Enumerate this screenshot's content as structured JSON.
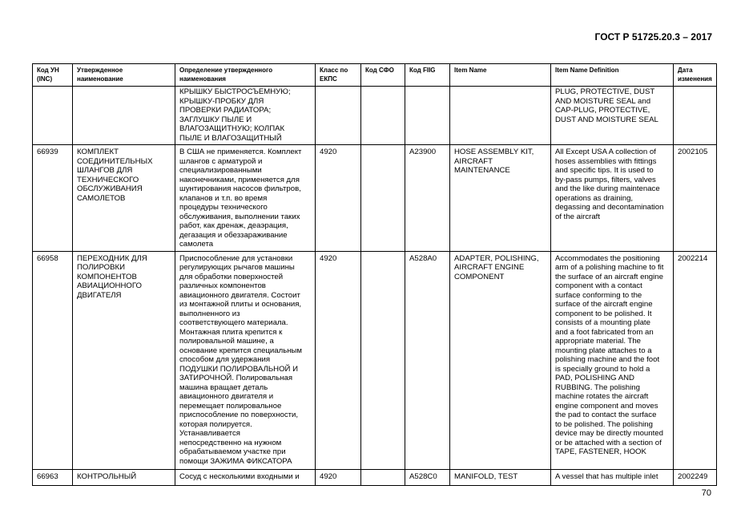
{
  "header": {
    "doc_title": "ГОСТ Р 51725.20.3 – 2017"
  },
  "table": {
    "columns": [
      "Код УН\n(INC)",
      "Утвержденное\nнаименование",
      "Определение утвержденного\nнаименования",
      "Класс по\nЕКПС",
      "Код СФО",
      "Код FIIG",
      "Item Name",
      "Item Name Definition",
      "Дата\nизменения"
    ],
    "rows": [
      [
        "",
        "",
        "КРЫШКУ БЫСТРОСЪЕМНУЮ;\nКРЫШКУ-ПРОБКУ ДЛЯ\nПРОВЕРКИ РАДИАТОРА;\nЗАГЛУШКУ ПЫЛЕ И\nВЛАГОЗАЩИТНУЮ; КОЛПАК\nПЫЛЕ И ВЛАГОЗАЩИТНЫЙ",
        "",
        "",
        "",
        "",
        "PLUG, PROTECTIVE, DUST\nAND MOISTURE SEAL and\nCAP-PLUG, PROTECTIVE,\nDUST AND MOISTURE SEAL",
        ""
      ],
      [
        "66939",
        "КОМПЛЕКТ\nСОЕДИНИТЕЛЬНЫХ\nШЛАНГОВ ДЛЯ\nТЕХНИЧЕСКОГО\nОБСЛУЖИВАНИЯ\nСАМОЛЕТОВ",
        "В США не применяется. Комплект\nшлангов с арматурой и\nспециализированными\nнаконечниками, применяется для\nшунтирования насосов фильтров,\nклапанов и т.п. во время\nпроцедуры технического\nобслуживания, выполнении таких\nработ, как дренаж, деаэрация,\nдегазация и обеззараживание\nсамолета",
        "4920",
        "",
        "A23900",
        "HOSE ASSEMBLY KIT,\nAIRCRAFT\nMAINTENANCE",
        "All Except USA A collection of\nhoses assemblies with fittings\nand specific tips.  It is used to\nby-pass pumps, filters, valves\nand the like during maintenace\noperations as draining,\ndegassing and decontamination\nof the aircraft",
        "2002105"
      ],
      [
        "66958",
        "ПЕРЕХОДНИК ДЛЯ\nПОЛИРОВКИ\nКОМПОНЕНТОВ\nАВИАЦИОННОГО\nДВИГАТЕЛЯ",
        "Приспособление для установки\nрегулирующих рычагов машины\nдля обработки поверхностей\nразличных компонентов\nавиационного двигателя. Состоит\nиз монтажной плиты и основания,\nвыполненного из\nсоответствующего материала.\nМонтажная плита крепится к\nполировальной машине, а\nоснование крепится специальным\nспособом для удержания\nПОДУШКИ ПОЛИРОВАЛЬНОЙ И\nЗАТИРОЧНОЙ. Полировальная\nмашина вращает деталь\nавиационного двигателя и\nперемещает полировальное\nприспособление по поверхности,\nкоторая полируется.\nУстанавливается\nнепосредственно на нужном\nобрабатываемом участке при\nпомощи ЗАЖИМА ФИКСАТОРА",
        "4920",
        "",
        "A528A0",
        "ADAPTER, POLISHING,\nAIRCRAFT ENGINE\nCOMPONENT",
        "Accommodates the positioning\narm of a polishing machine to fit\nthe surface of an aircraft engine\ncomponent with a contact\nsurface conforming to the\nsurface of the aircraft engine\ncomponent to be polished.  It\nconsists of a mounting plate\nand a foot fabricated from an\nappropriate material.  The\nmounting plate attaches to a\npolishing machine and the foot\nis specially ground to hold a\nPAD, POLISHING AND\nRUBBING.  The polishing\nmachine rotates the aircraft\nengine component and moves\nthe pad to contact the surface\nto be polished.  The polishing\ndevice may be directly mounted\nor be attached with a section of\nTAPE, FASTENER, HOOK",
        "2002214"
      ],
      [
        "66963",
        "КОНТРОЛЬНЫЙ",
        "Сосуд с несколькими входными и",
        "4920",
        "",
        "A528C0",
        "MANIFOLD, TEST",
        "A vessel that has multiple inlet",
        "2002249"
      ]
    ]
  },
  "footer": {
    "page_number": "70"
  }
}
